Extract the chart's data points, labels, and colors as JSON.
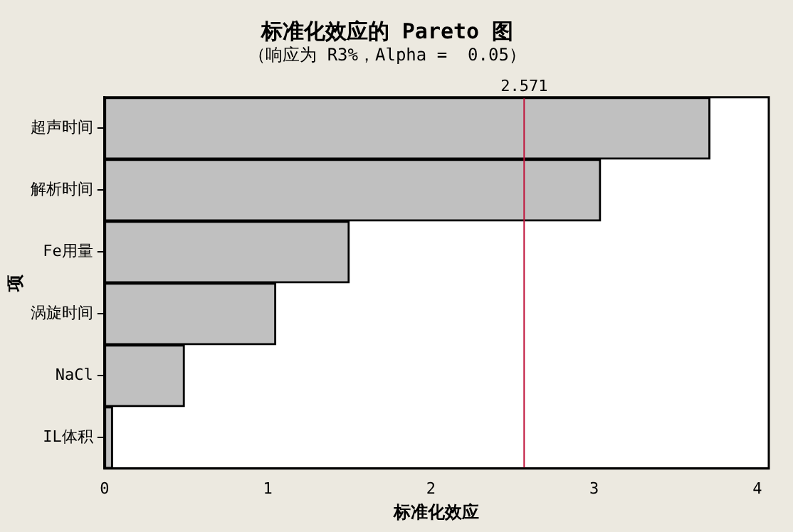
{
  "chart_data": {
    "type": "bar",
    "orientation": "horizontal",
    "title": "标准化效应的 Pareto 图",
    "subtitle": "（响应为 R3%，Alpha =  0.05）",
    "xlabel": "标准化效应",
    "ylabel": "项",
    "categories": [
      "超声时间",
      "解析时间",
      "Fe用量",
      "涡旋时间",
      "NaCl",
      "IL体积"
    ],
    "values": [
      3.71,
      3.04,
      1.5,
      1.05,
      0.49,
      0.05
    ],
    "color": "#c0c0c0",
    "xlim": [
      0,
      4.07
    ],
    "xticks": [
      0,
      1,
      2,
      3,
      4
    ],
    "ref_lines": [
      {
        "axis": "x",
        "value": 2.571,
        "label": "2.571",
        "color": "#c0143c"
      }
    ]
  }
}
